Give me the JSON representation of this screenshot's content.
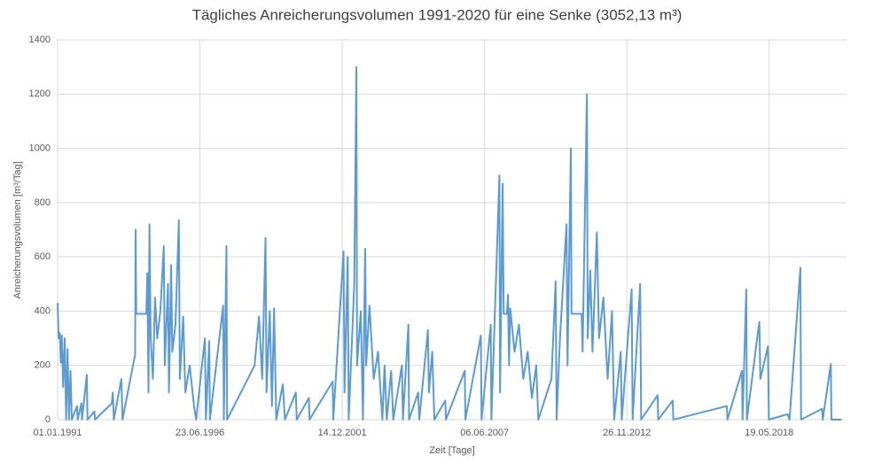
{
  "chart_data": {
    "type": "line",
    "title": "Tägliches Anreicherungsvolumen 1991-2020 für eine Senke (3052,13 m³)",
    "x_label": "Zeit [Tage]",
    "y_label": "Anreicherungsvolumen [m³/Tag]",
    "color": "#5b9bd5",
    "grid": true,
    "xlim": [
      "01.01.1991",
      "10.05.2021"
    ],
    "xticks": [
      "01.01.1991",
      "23.06.1996",
      "14.12.2001",
      "06.06.2007",
      "26.11.2012",
      "19.05.2018"
    ],
    "ylim": [
      0,
      1400
    ],
    "yticks": [
      0,
      200,
      400,
      600,
      800,
      1000,
      1200,
      1400
    ],
    "x": [
      "01.01.1991",
      "15.01.1991",
      "01.02.1991",
      "15.02.1991",
      "01.03.1991",
      "20.03.1991",
      "10.04.1991",
      "01.05.1991",
      "20.05.1991",
      "10.06.1991",
      "01.07.1991",
      "20.07.1991",
      "01.10.1991",
      "10.10.1991",
      "01.12.1991",
      "10.12.1991",
      "15.02.1992",
      "25.02.1992",
      "01.06.1992",
      "10.06.1992",
      "01.02.1993",
      "15.02.1993",
      "01.03.1993",
      "15.06.1993",
      "01.07.1993",
      "25.12.1993",
      "01.01.1994",
      "10.01.1994",
      "01.06.1994",
      "15.06.1994",
      "01.07.1994",
      "15.07.1994",
      "01.08.1994",
      "01.09.1994",
      "01.10.1994",
      "01.11.1994",
      "15.12.1994",
      "01.02.1995",
      "15.02.1995",
      "01.04.1995",
      "15.04.1995",
      "15.05.1995",
      "01.06.1995",
      "15.07.1995",
      "01.09.1995",
      "15.09.1995",
      "01.11.1995",
      "01.12.1995",
      "01.02.1996",
      "01.04.1996",
      "01.05.1996",
      "01.09.1996",
      "15.09.1996",
      "01.11.1996",
      "10.11.1996",
      "15.05.1997",
      "25.05.1997",
      "01.07.1997",
      "10.07.1997",
      "01.08.1998",
      "01.10.1998",
      "15.11.1998",
      "01.01.1999",
      "15.01.1999",
      "01.03.1999",
      "01.04.1999",
      "01.05.1999",
      "01.06.1999",
      "01.09.1999",
      "01.10.1999",
      "01.03.2000",
      "15.03.2000",
      "01.09.2000",
      "10.09.2000",
      "01.08.2001",
      "10.08.2001",
      "01.01.2002",
      "15.01.2002",
      "01.03.2002",
      "15.03.2002",
      "01.06.2002",
      "01.07.2002",
      "10.07.2002",
      "01.09.2002",
      "01.10.2002",
      "01.11.2002",
      "15.11.2002",
      "01.01.2003",
      "01.03.2003",
      "01.05.2003",
      "01.07.2003",
      "01.08.2003",
      "01.09.2003",
      "01.11.2003",
      "01.12.2003",
      "01.04.2004",
      "15.04.2004",
      "01.07.2004",
      "10.07.2004",
      "15.11.2004",
      "01.12.2004",
      "01.04.2005",
      "15.04.2005",
      "01.06.2005",
      "01.07.2005",
      "01.12.2005",
      "10.12.2005",
      "01.09.2006",
      "10.09.2006",
      "15.04.2007",
      "25.04.2007",
      "01.09.2007",
      "10.09.2007",
      "01.01.2008",
      "10.01.2008",
      "15.02.2008",
      "01.03.2008",
      "15.04.2008",
      "01.05.2008",
      "15.05.2008",
      "01.06.2008",
      "01.08.2008",
      "01.10.2008",
      "01.12.2008",
      "01.02.2009",
      "01.04.2009",
      "01.06.2009",
      "01.07.2009",
      "01.01.2010",
      "01.03.2010",
      "15.03.2010",
      "01.05.2010",
      "01.08.2010",
      "15.08.2010",
      "01.10.2010",
      "10.10.2010",
      "01.03.2011",
      "15.03.2011",
      "15.05.2011",
      "25.05.2011",
      "01.07.2011",
      "01.08.2011",
      "01.10.2011",
      "01.11.2011",
      "01.01.2012",
      "01.03.2012",
      "01.05.2012",
      "01.06.2012",
      "01.09.2012",
      "15.09.2012",
      "01.02.2013",
      "15.02.2013",
      "01.06.2013",
      "15.06.2013",
      "01.02.2014",
      "10.02.2014",
      "01.09.2014",
      "10.09.2014",
      "01.10.2016",
      "10.10.2016",
      "01.05.2017",
      "10.05.2017",
      "01.07.2017",
      "10.07.2017",
      "01.12.2017",
      "01.01.2018",
      "15.01.2018",
      "01.03.2018",
      "01.05.2018",
      "15.05.2018",
      "01.02.2019",
      "01.03.2019",
      "01.08.2019",
      "10.08.2019",
      "01.06.2020",
      "10.06.2020",
      "01.10.2020",
      "10.10.2020",
      "01.03.2021"
    ],
    "values": [
      430,
      300,
      320,
      210,
      310,
      120,
      300,
      0,
      260,
      0,
      180,
      0,
      50,
      0,
      60,
      0,
      165,
      0,
      30,
      0,
      60,
      100,
      0,
      150,
      0,
      240,
      700,
      390,
      390,
      540,
      100,
      720,
      300,
      150,
      450,
      300,
      400,
      640,
      200,
      500,
      100,
      570,
      250,
      350,
      735,
      150,
      380,
      100,
      200,
      50,
      0,
      300,
      0,
      290,
      0,
      420,
      0,
      640,
      0,
      200,
      380,
      150,
      670,
      100,
      400,
      50,
      410,
      0,
      130,
      0,
      100,
      0,
      80,
      0,
      140,
      0,
      620,
      100,
      600,
      0,
      500,
      1300,
      200,
      400,
      0,
      630,
      200,
      420,
      150,
      250,
      0,
      200,
      0,
      180,
      0,
      200,
      0,
      350,
      0,
      100,
      0,
      330,
      100,
      250,
      0,
      70,
      0,
      180,
      0,
      310,
      0,
      350,
      0,
      900,
      100,
      870,
      390,
      390,
      460,
      200,
      410,
      250,
      350,
      150,
      250,
      80,
      200,
      0,
      150,
      510,
      0,
      300,
      720,
      200,
      1000,
      390,
      390,
      250,
      1200,
      300,
      550,
      250,
      690,
      300,
      450,
      150,
      400,
      0,
      250,
      0,
      480,
      0,
      500,
      0,
      90,
      0,
      70,
      0,
      50,
      0,
      180,
      0,
      480,
      0,
      300,
      360,
      150,
      200,
      270,
      0,
      20,
      0,
      560,
      0,
      40,
      0,
      205,
      0,
      0
    ]
  }
}
